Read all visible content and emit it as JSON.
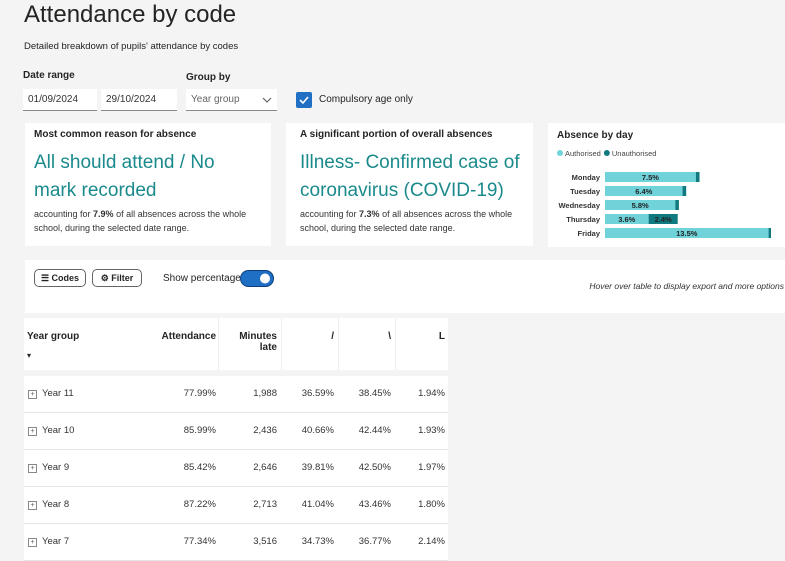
{
  "header": {
    "title": "Attendance by code",
    "subtitle": "Detailed breakdown of pupils' attendance by codes"
  },
  "filters": {
    "date_range_label": "Date range",
    "start_date": "01/09/2024",
    "end_date": "29/10/2024",
    "group_by_label": "Group by",
    "group_by_value": "Year group",
    "compulsory_label": "Compulsory age only"
  },
  "cards": [
    {
      "title": "Most common reason for absence",
      "headline": "All should attend / No mark recorded",
      "text_pre": "accounting for ",
      "highlight": "7.9%",
      "text_post": " of all absences across the whole school, during the selected date range."
    },
    {
      "title": "A significant portion of overall absences",
      "headline": "Illness- Confirmed case of coronavirus (COVID-19)",
      "text_pre": "accounting for ",
      "highlight": "7.3%",
      "text_post": " of all absences across the whole school, during the selected date range."
    }
  ],
  "chart_data": {
    "type": "bar",
    "orientation": "horizontal",
    "stacked": true,
    "title": "Absence by day",
    "categories": [
      "Monday",
      "Tuesday",
      "Wednesday",
      "Thursday",
      "Friday"
    ],
    "series": [
      {
        "name": "Authorised",
        "color": "#6fd3d9",
        "values": [
          7.5,
          6.4,
          5.8,
          3.6,
          13.5
        ],
        "value_labels": [
          "7.5%",
          "6.4%",
          "5.8%",
          "3.6%",
          "13.5%"
        ]
      },
      {
        "name": "Unauthorised",
        "color": "#117a80",
        "values": [
          0.3,
          0.3,
          0.3,
          2.4,
          0.2
        ],
        "value_labels": [
          null,
          null,
          null,
          "2.4%",
          null
        ]
      }
    ]
  },
  "controls": {
    "codes": "Codes",
    "filter": "Filter",
    "show_percentage": "Show percentage",
    "hint": "Hover over table to display export and more options"
  },
  "table": {
    "columns": [
      "Year group",
      "Attendance",
      "Minutes late",
      "/",
      "\\",
      "L"
    ],
    "rows": [
      [
        "Year 11",
        "77.99%",
        "1,988",
        "36.59%",
        "38.45%",
        "1.94%"
      ],
      [
        "Year 10",
        "85.99%",
        "2,436",
        "40.66%",
        "42.44%",
        "1.93%"
      ],
      [
        "Year 9",
        "85.42%",
        "2,646",
        "39.81%",
        "42.50%",
        "1.97%"
      ],
      [
        "Year 8",
        "87.22%",
        "2,713",
        "41.04%",
        "43.46%",
        "1.80%"
      ],
      [
        "Year 7",
        "77.34%",
        "3,516",
        "34.73%",
        "36.77%",
        "2.14%"
      ]
    ]
  }
}
